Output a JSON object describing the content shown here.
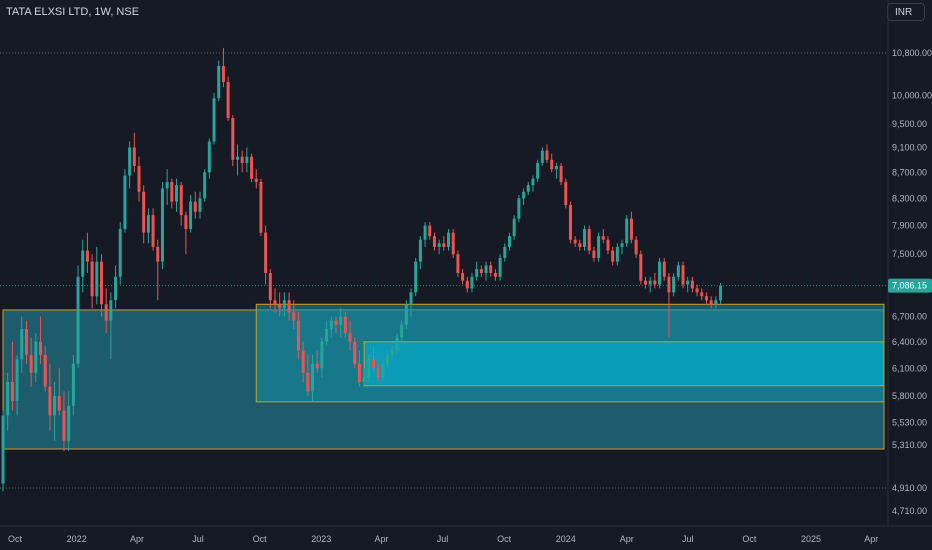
{
  "header": {
    "symbol": "TATA ELXSI LTD, 1W, NSE",
    "currency": "INR"
  },
  "colors": {
    "background": "#161a25",
    "up": "#26a69a",
    "down": "#ef5350",
    "zone_fill_dark": "#1f6f80",
    "zone_fill_mid": "#1690a6",
    "zone_fill_light": "#06a8c4",
    "zone_border": "#c9a227",
    "axis_text": "#b2b5be",
    "last_price_label": "#26a69a"
  },
  "chart_data": {
    "type": "candlestick",
    "title": "TATA ELXSI LTD, 1W, NSE",
    "y_axis": {
      "scale": "log",
      "ticks": [
        "10,800.00",
        "10,000.00",
        "9,500.00",
        "9,100.00",
        "8,700.00",
        "8,300.00",
        "7,900.00",
        "7,500.00",
        "6,700.00",
        "6,400.00",
        "6,100.00",
        "5,800.00",
        "5,530.00",
        "5,310.00",
        "4,910.00",
        "4,710.00"
      ],
      "tick_values": [
        10800,
        10000,
        9500,
        9100,
        8700,
        8300,
        7900,
        7500,
        6700,
        6400,
        6100,
        5800,
        5530,
        5310,
        4910,
        4710
      ],
      "range": [
        4600,
        11600
      ]
    },
    "x_axis": {
      "ticks": [
        "Oct",
        "2022",
        "Apr",
        "Jul",
        "Oct",
        "2023",
        "Apr",
        "Jul",
        "Oct",
        "2024",
        "Apr",
        "Jul",
        "Oct",
        "2025",
        "Apr"
      ],
      "tick_dates": [
        "2021-10-01",
        "2022-01-01",
        "2022-04-01",
        "2022-07-01",
        "2022-10-01",
        "2023-01-01",
        "2023-04-01",
        "2023-07-01",
        "2023-10-01",
        "2024-01-01",
        "2024-04-01",
        "2024-07-01",
        "2024-10-01",
        "2025-01-01",
        "2025-04-01"
      ]
    },
    "last_price": {
      "value": 7086.15,
      "label": "7,086.15"
    },
    "reference_line": {
      "value": 10800
    },
    "bottom_reference_line": {
      "value": 4910
    },
    "zones": [
      {
        "name": "demand-zone-1",
        "from": "2021-09-13",
        "to": "2025-04-20",
        "top": 6780,
        "bottom": 5270
      },
      {
        "name": "demand-zone-2",
        "from": "2022-09-26",
        "to": "2025-04-20",
        "top": 6850,
        "bottom": 5740
      },
      {
        "name": "demand-zone-3",
        "from": "2023-03-06",
        "to": "2025-04-20",
        "top": 6400,
        "bottom": 5910
      }
    ],
    "candles": [
      [
        "2021-09-13",
        4950,
        5650,
        4880,
        5600
      ],
      [
        "2021-09-20",
        5600,
        6050,
        5450,
        5950
      ],
      [
        "2021-09-27",
        5950,
        6400,
        5650,
        5750
      ],
      [
        "2021-10-04",
        5750,
        6250,
        5600,
        6200
      ],
      [
        "2021-10-11",
        6200,
        6700,
        6050,
        6550
      ],
      [
        "2021-10-18",
        6550,
        6650,
        6150,
        6250
      ],
      [
        "2021-10-25",
        6250,
        6450,
        5900,
        6050
      ],
      [
        "2021-11-01",
        6050,
        6500,
        5950,
        6400
      ],
      [
        "2021-11-08",
        6400,
        6700,
        6150,
        6250
      ],
      [
        "2021-11-15",
        6250,
        6350,
        5850,
        5900
      ],
      [
        "2021-11-22",
        5900,
        6150,
        5450,
        5600
      ],
      [
        "2021-11-29",
        5600,
        5950,
        5350,
        5800
      ],
      [
        "2021-12-06",
        5800,
        6100,
        5600,
        5650
      ],
      [
        "2021-12-13",
        5650,
        5850,
        5250,
        5350
      ],
      [
        "2021-12-20",
        5350,
        5850,
        5250,
        5700
      ],
      [
        "2021-12-27",
        5700,
        6250,
        5600,
        6150
      ],
      [
        "2022-01-03",
        6150,
        7350,
        6100,
        7200
      ],
      [
        "2022-01-10",
        7200,
        7700,
        7000,
        7550
      ],
      [
        "2022-01-17",
        7550,
        7800,
        7250,
        7400
      ],
      [
        "2022-01-24",
        7400,
        7500,
        6800,
        6950
      ],
      [
        "2022-01-31",
        6950,
        7600,
        6850,
        7400
      ],
      [
        "2022-02-07",
        7400,
        7500,
        6700,
        6850
      ],
      [
        "2022-02-14",
        6850,
        7050,
        6500,
        6650
      ],
      [
        "2022-02-21",
        6650,
        7000,
        6200,
        6900
      ],
      [
        "2022-02-28",
        6900,
        7350,
        6800,
        7200
      ],
      [
        "2022-03-07",
        7200,
        7950,
        7100,
        7850
      ],
      [
        "2022-03-14",
        7850,
        8750,
        7800,
        8650
      ],
      [
        "2022-03-21",
        8650,
        9200,
        8450,
        9100
      ],
      [
        "2022-03-28",
        9100,
        9350,
        8700,
        8800
      ],
      [
        "2022-04-04",
        8800,
        8950,
        8250,
        8400
      ],
      [
        "2022-04-11",
        8400,
        8500,
        7650,
        7800
      ],
      [
        "2022-04-18",
        7800,
        8150,
        7650,
        8050
      ],
      [
        "2022-04-25",
        8050,
        8150,
        7550,
        7600
      ],
      [
        "2022-05-02",
        7600,
        7700,
        6900,
        7400
      ],
      [
        "2022-05-09",
        7400,
        8550,
        7300,
        8450
      ],
      [
        "2022-05-16",
        8450,
        8750,
        8200,
        8550
      ],
      [
        "2022-05-23",
        8550,
        8600,
        8150,
        8250
      ],
      [
        "2022-05-30",
        8250,
        8600,
        8100,
        8500
      ],
      [
        "2022-06-06",
        8500,
        8550,
        7900,
        8050
      ],
      [
        "2022-06-13",
        8050,
        8100,
        7500,
        7850
      ],
      [
        "2022-06-20",
        7850,
        8350,
        7800,
        8250
      ],
      [
        "2022-06-27",
        8250,
        8400,
        8000,
        8100
      ],
      [
        "2022-07-04",
        8100,
        8400,
        8000,
        8300
      ],
      [
        "2022-07-11",
        8300,
        8750,
        8250,
        8700
      ],
      [
        "2022-07-18",
        8700,
        9250,
        8600,
        9200
      ],
      [
        "2022-07-25",
        9200,
        10050,
        9150,
        9950
      ],
      [
        "2022-08-01",
        9950,
        10650,
        9900,
        10550
      ],
      [
        "2022-08-08",
        10550,
        10900,
        10150,
        10250
      ],
      [
        "2022-08-15",
        10250,
        10350,
        9550,
        9600
      ],
      [
        "2022-08-22",
        9600,
        9650,
        8800,
        8900
      ],
      [
        "2022-08-29",
        8900,
        9150,
        8650,
        8950
      ],
      [
        "2022-09-05",
        8950,
        9050,
        8700,
        8850
      ],
      [
        "2022-09-12",
        8850,
        9100,
        8700,
        8950
      ],
      [
        "2022-09-19",
        8950,
        9000,
        8550,
        8600
      ],
      [
        "2022-09-26",
        8600,
        8750,
        8450,
        8550
      ],
      [
        "2022-10-03",
        8550,
        8600,
        7750,
        7800
      ],
      [
        "2022-10-10",
        7800,
        7900,
        7100,
        7250
      ],
      [
        "2022-10-17",
        7250,
        7300,
        6800,
        6900
      ],
      [
        "2022-10-24",
        6900,
        7050,
        6750,
        6850
      ],
      [
        "2022-10-31",
        6850,
        7000,
        6700,
        6800
      ],
      [
        "2022-11-07",
        6800,
        7000,
        6700,
        6900
      ],
      [
        "2022-11-14",
        6900,
        7000,
        6650,
        6750
      ],
      [
        "2022-11-21",
        6750,
        6900,
        6550,
        6650
      ],
      [
        "2022-11-28",
        6650,
        6750,
        6200,
        6300
      ],
      [
        "2022-12-05",
        6300,
        6400,
        5950,
        6050
      ],
      [
        "2022-12-12",
        6050,
        6250,
        5800,
        5850
      ],
      [
        "2022-12-19",
        5850,
        6250,
        5750,
        6150
      ],
      [
        "2022-12-26",
        6150,
        6300,
        6050,
        6100
      ],
      [
        "2023-01-02",
        6100,
        6450,
        6000,
        6400
      ],
      [
        "2023-01-09",
        6400,
        6650,
        6350,
        6550
      ],
      [
        "2023-01-16",
        6550,
        6700,
        6450,
        6650
      ],
      [
        "2023-01-23",
        6650,
        6700,
        6500,
        6600
      ],
      [
        "2023-01-30",
        6600,
        6800,
        6450,
        6700
      ],
      [
        "2023-02-06",
        6700,
        6750,
        6450,
        6500
      ],
      [
        "2023-02-13",
        6500,
        6650,
        6300,
        6400
      ],
      [
        "2023-02-20",
        6400,
        6450,
        6100,
        6150
      ],
      [
        "2023-02-27",
        6150,
        6300,
        5900,
        5950
      ],
      [
        "2023-03-06",
        5950,
        6100,
        5900,
        6000
      ],
      [
        "2023-03-13",
        6000,
        6250,
        5950,
        6200
      ],
      [
        "2023-03-20",
        6200,
        6350,
        6050,
        6100
      ],
      [
        "2023-03-27",
        6100,
        6150,
        5950,
        6000
      ],
      [
        "2023-04-03",
        6000,
        6200,
        5960,
        6150
      ],
      [
        "2023-04-10",
        6150,
        6300,
        6100,
        6250
      ],
      [
        "2023-04-17",
        6250,
        6350,
        6200,
        6300
      ],
      [
        "2023-04-24",
        6300,
        6500,
        6250,
        6450
      ],
      [
        "2023-05-01",
        6450,
        6650,
        6400,
        6600
      ],
      [
        "2023-05-08",
        6600,
        6900,
        6550,
        6850
      ],
      [
        "2023-05-15",
        6850,
        7050,
        6700,
        7000
      ],
      [
        "2023-05-22",
        7000,
        7450,
        6950,
        7400
      ],
      [
        "2023-05-29",
        7400,
        7750,
        7300,
        7700
      ],
      [
        "2023-06-05",
        7700,
        7950,
        7600,
        7900
      ],
      [
        "2023-06-12",
        7900,
        7950,
        7700,
        7750
      ],
      [
        "2023-06-19",
        7750,
        7800,
        7550,
        7600
      ],
      [
        "2023-06-26",
        7600,
        7700,
        7500,
        7650
      ],
      [
        "2023-07-03",
        7650,
        7750,
        7550,
        7600
      ],
      [
        "2023-07-10",
        7600,
        7850,
        7550,
        7800
      ],
      [
        "2023-07-17",
        7800,
        7850,
        7450,
        7500
      ],
      [
        "2023-07-24",
        7500,
        7550,
        7200,
        7250
      ],
      [
        "2023-07-31",
        7250,
        7300,
        7100,
        7150
      ],
      [
        "2023-08-07",
        7150,
        7200,
        7000,
        7050
      ],
      [
        "2023-08-14",
        7050,
        7250,
        7000,
        7200
      ],
      [
        "2023-08-21",
        7200,
        7400,
        7150,
        7300
      ],
      [
        "2023-08-28",
        7300,
        7350,
        7200,
        7250
      ],
      [
        "2023-09-04",
        7250,
        7400,
        7150,
        7350
      ],
      [
        "2023-09-11",
        7350,
        7400,
        7200,
        7250
      ],
      [
        "2023-09-18",
        7250,
        7300,
        7150,
        7200
      ],
      [
        "2023-09-25",
        7200,
        7500,
        7150,
        7450
      ],
      [
        "2023-10-02",
        7450,
        7650,
        7400,
        7600
      ],
      [
        "2023-10-09",
        7600,
        7800,
        7550,
        7750
      ],
      [
        "2023-10-16",
        7750,
        8050,
        7700,
        8000
      ],
      [
        "2023-10-23",
        8000,
        8350,
        7950,
        8300
      ],
      [
        "2023-10-30",
        8300,
        8450,
        8200,
        8400
      ],
      [
        "2023-11-06",
        8400,
        8550,
        8350,
        8500
      ],
      [
        "2023-11-13",
        8500,
        8650,
        8400,
        8600
      ],
      [
        "2023-11-20",
        8600,
        8900,
        8550,
        8850
      ],
      [
        "2023-11-27",
        8850,
        9100,
        8800,
        9050
      ],
      [
        "2023-12-04",
        9050,
        9150,
        8850,
        8900
      ],
      [
        "2023-12-11",
        8900,
        9000,
        8700,
        8750
      ],
      [
        "2023-12-18",
        8750,
        8850,
        8600,
        8800
      ],
      [
        "2023-12-25",
        8800,
        8850,
        8500,
        8550
      ],
      [
        "2024-01-01",
        8550,
        8600,
        8150,
        8200
      ],
      [
        "2024-01-08",
        8200,
        8250,
        7650,
        7700
      ],
      [
        "2024-01-15",
        7700,
        7750,
        7600,
        7650
      ],
      [
        "2024-01-22",
        7650,
        7700,
        7550,
        7600
      ],
      [
        "2024-01-29",
        7600,
        7900,
        7550,
        7850
      ],
      [
        "2024-02-05",
        7850,
        7900,
        7500,
        7550
      ],
      [
        "2024-02-12",
        7550,
        7600,
        7400,
        7450
      ],
      [
        "2024-02-19",
        7450,
        7800,
        7400,
        7750
      ],
      [
        "2024-02-26",
        7750,
        7850,
        7650,
        7700
      ],
      [
        "2024-03-04",
        7700,
        7750,
        7500,
        7550
      ],
      [
        "2024-03-11",
        7550,
        7600,
        7350,
        7400
      ],
      [
        "2024-03-18",
        7400,
        7650,
        7350,
        7600
      ],
      [
        "2024-03-25",
        7600,
        7700,
        7500,
        7650
      ],
      [
        "2024-04-01",
        7650,
        8050,
        7600,
        8000
      ],
      [
        "2024-04-08",
        8000,
        8100,
        7650,
        7700
      ],
      [
        "2024-04-15",
        7700,
        7750,
        7450,
        7500
      ],
      [
        "2024-04-22",
        7500,
        7550,
        7100,
        7150
      ],
      [
        "2024-04-29",
        7150,
        7200,
        7050,
        7100
      ],
      [
        "2024-05-06",
        7100,
        7200,
        7000,
        7150
      ],
      [
        "2024-05-13",
        7150,
        7250,
        7050,
        7100
      ],
      [
        "2024-05-20",
        7100,
        7450,
        7050,
        7400
      ],
      [
        "2024-05-27",
        7400,
        7450,
        7150,
        7200
      ],
      [
        "2024-06-03",
        7200,
        7250,
        6450,
        7000
      ],
      [
        "2024-06-10",
        7000,
        7250,
        6950,
        7200
      ],
      [
        "2024-06-17",
        7200,
        7400,
        7150,
        7350
      ],
      [
        "2024-06-24",
        7350,
        7400,
        7050,
        7100
      ],
      [
        "2024-07-01",
        7100,
        7200,
        7000,
        7150
      ],
      [
        "2024-07-08",
        7150,
        7200,
        7000,
        7050
      ],
      [
        "2024-07-15",
        7050,
        7100,
        6950,
        7000
      ],
      [
        "2024-07-22",
        7000,
        7050,
        6900,
        6950
      ],
      [
        "2024-07-29",
        6950,
        7000,
        6850,
        6900
      ],
      [
        "2024-08-05",
        6900,
        6950,
        6800,
        6850
      ],
      [
        "2024-08-12",
        6850,
        6950,
        6800,
        6900
      ],
      [
        "2024-08-19",
        6900,
        7120,
        6850,
        7086.15
      ]
    ]
  }
}
